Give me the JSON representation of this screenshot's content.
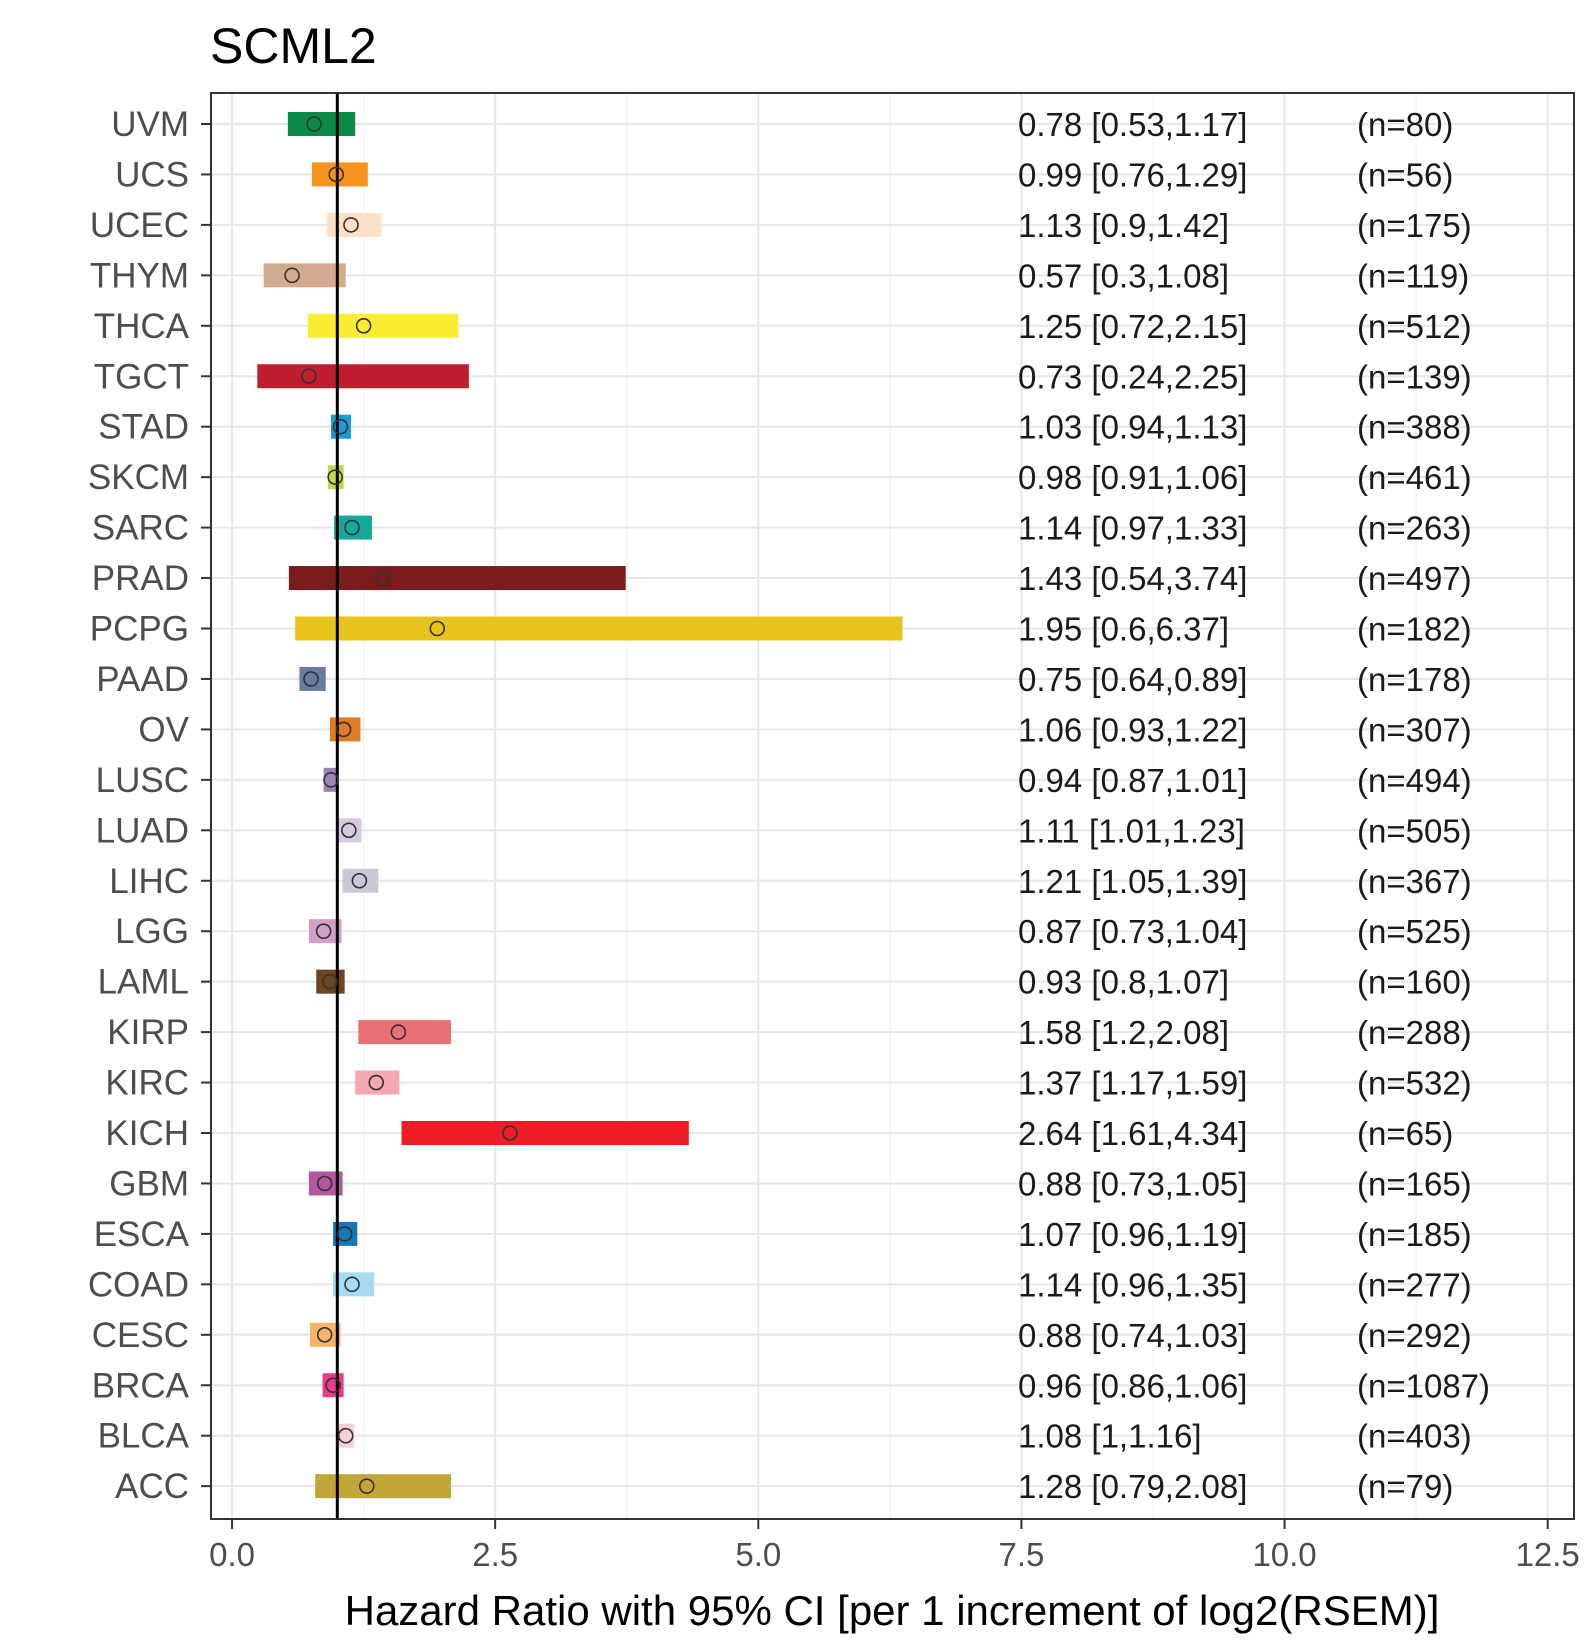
{
  "chart_data": {
    "type": "forest",
    "title": "SCML2",
    "xlabel": "Hazard Ratio with 95% CI [per 1 increment of log2(RSEM)]",
    "xlim": [
      -0.2,
      12.75
    ],
    "xticks": [
      0.0,
      2.5,
      5.0,
      7.5,
      10.0,
      12.5
    ],
    "xtick_labels": [
      "0.0",
      "2.5",
      "5.0",
      "7.5",
      "10.0",
      "12.5"
    ],
    "reference_line": 1,
    "rows": [
      {
        "label": "UVM",
        "hr": 0.78,
        "lo": 0.53,
        "hi": 1.17,
        "text": "0.78 [0.53,1.17]",
        "n": "(n=80)",
        "color": "#0b8a43"
      },
      {
        "label": "UCS",
        "hr": 0.99,
        "lo": 0.76,
        "hi": 1.29,
        "text": "0.99 [0.76,1.29]",
        "n": "(n=56)",
        "color": "#f7941d"
      },
      {
        "label": "UCEC",
        "hr": 1.13,
        "lo": 0.9,
        "hi": 1.42,
        "text": "1.13 [0.9,1.42]",
        "n": "(n=175)",
        "color": "#fde0c5"
      },
      {
        "label": "THYM",
        "hr": 0.57,
        "lo": 0.3,
        "hi": 1.08,
        "text": "0.57 [0.3,1.08]",
        "n": "(n=119)",
        "color": "#d2ab8e"
      },
      {
        "label": "THCA",
        "hr": 1.25,
        "lo": 0.72,
        "hi": 2.15,
        "text": "1.25 [0.72,2.15]",
        "n": "(n=512)",
        "color": "#f9ec31"
      },
      {
        "label": "TGCT",
        "hr": 0.73,
        "lo": 0.24,
        "hi": 2.25,
        "text": "0.73 [0.24,2.25]",
        "n": "(n=139)",
        "color": "#be1e2d"
      },
      {
        "label": "STAD",
        "hr": 1.03,
        "lo": 0.94,
        "hi": 1.13,
        "text": "1.03 [0.94,1.13]",
        "n": "(n=388)",
        "color": "#1c9ad6"
      },
      {
        "label": "SKCM",
        "hr": 0.98,
        "lo": 0.91,
        "hi": 1.06,
        "text": "0.98 [0.91,1.06]",
        "n": "(n=461)",
        "color": "#c1d94f"
      },
      {
        "label": "SARC",
        "hr": 1.14,
        "lo": 0.97,
        "hi": 1.33,
        "text": "1.14 [0.97,1.33]",
        "n": "(n=263)",
        "color": "#17a89c"
      },
      {
        "label": "PRAD",
        "hr": 1.43,
        "lo": 0.54,
        "hi": 3.74,
        "text": "1.43 [0.54,3.74]",
        "n": "(n=497)",
        "color": "#7b1a1a"
      },
      {
        "label": "PCPG",
        "hr": 1.95,
        "lo": 0.6,
        "hi": 6.37,
        "text": "1.95 [0.6,6.37]",
        "n": "(n=182)",
        "color": "#e8c31c"
      },
      {
        "label": "PAAD",
        "hr": 0.75,
        "lo": 0.64,
        "hi": 0.89,
        "text": "0.75 [0.64,0.89]",
        "n": "(n=178)",
        "color": "#6a7aa0"
      },
      {
        "label": "OV",
        "hr": 1.06,
        "lo": 0.93,
        "hi": 1.22,
        "text": "1.06 [0.93,1.22]",
        "n": "(n=307)",
        "color": "#e07b27"
      },
      {
        "label": "LUSC",
        "hr": 0.94,
        "lo": 0.87,
        "hi": 1.01,
        "text": "0.94 [0.87,1.01]",
        "n": "(n=494)",
        "color": "#9a86b5"
      },
      {
        "label": "LUAD",
        "hr": 1.11,
        "lo": 1.01,
        "hi": 1.23,
        "text": "1.11 [1.01,1.23]",
        "n": "(n=505)",
        "color": "#d7c9e1"
      },
      {
        "label": "LIHC",
        "hr": 1.21,
        "lo": 1.05,
        "hi": 1.39,
        "text": "1.21 [1.05,1.39]",
        "n": "(n=367)",
        "color": "#c8c8d8"
      },
      {
        "label": "LGG",
        "hr": 0.87,
        "lo": 0.73,
        "hi": 1.04,
        "text": "0.87 [0.73,1.04]",
        "n": "(n=525)",
        "color": "#d0a0c8"
      },
      {
        "label": "LAML",
        "hr": 0.93,
        "lo": 0.8,
        "hi": 1.07,
        "text": "0.93 [0.8,1.07]",
        "n": "(n=160)",
        "color": "#6b4423"
      },
      {
        "label": "KIRP",
        "hr": 1.58,
        "lo": 1.2,
        "hi": 2.08,
        "text": "1.58 [1.2,2.08]",
        "n": "(n=288)",
        "color": "#ea7077"
      },
      {
        "label": "KIRC",
        "hr": 1.37,
        "lo": 1.17,
        "hi": 1.59,
        "text": "1.37 [1.17,1.59]",
        "n": "(n=532)",
        "color": "#f6a8b2"
      },
      {
        "label": "KICH",
        "hr": 2.64,
        "lo": 1.61,
        "hi": 4.34,
        "text": "2.64 [1.61,4.34]",
        "n": "(n=65)",
        "color": "#ee1c25"
      },
      {
        "label": "GBM",
        "hr": 0.88,
        "lo": 0.73,
        "hi": 1.05,
        "text": "0.88 [0.73,1.05]",
        "n": "(n=165)",
        "color": "#b3589e"
      },
      {
        "label": "ESCA",
        "hr": 1.07,
        "lo": 0.96,
        "hi": 1.19,
        "text": "1.07 [0.96,1.19]",
        "n": "(n=185)",
        "color": "#1578b6"
      },
      {
        "label": "COAD",
        "hr": 1.14,
        "lo": 0.96,
        "hi": 1.35,
        "text": "1.14 [0.96,1.35]",
        "n": "(n=277)",
        "color": "#a6dbf3"
      },
      {
        "label": "CESC",
        "hr": 0.88,
        "lo": 0.74,
        "hi": 1.03,
        "text": "0.88 [0.74,1.03]",
        "n": "(n=292)",
        "color": "#f6b46b"
      },
      {
        "label": "BRCA",
        "hr": 0.96,
        "lo": 0.86,
        "hi": 1.06,
        "text": "0.96 [0.86,1.06]",
        "n": "(n=1087)",
        "color": "#ea3a8c"
      },
      {
        "label": "BLCA",
        "hr": 1.08,
        "lo": 1,
        "hi": 1.16,
        "text": "1.08 [1,1.16]",
        "n": "(n=403)",
        "color": "#fad0d8"
      },
      {
        "label": "ACC",
        "hr": 1.28,
        "lo": 0.79,
        "hi": 2.08,
        "text": "1.28 [0.79,2.08]",
        "n": "(n=79)",
        "color": "#c2a637"
      }
    ]
  }
}
